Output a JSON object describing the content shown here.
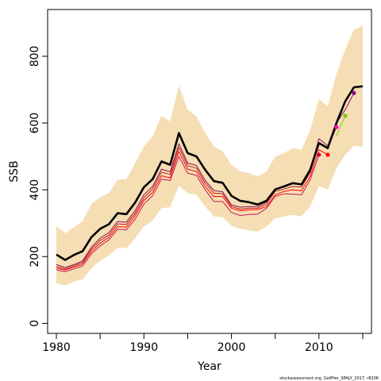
{
  "chart_data": {
    "type": "line",
    "xlabel": "Year",
    "ylabel": "SSB",
    "xlim": [
      1979,
      2016
    ],
    "ylim": [
      -30,
      940
    ],
    "x_ticks": [
      1980,
      1990,
      2000,
      2010
    ],
    "y_ticks": [
      0,
      200,
      400,
      600,
      800
    ],
    "band_color": "#F5DEB3",
    "band": {
      "x": [
        1980,
        1981,
        1982,
        1983,
        1984,
        1985,
        1986,
        1987,
        1988,
        1989,
        1990,
        1991,
        1992,
        1993,
        1994,
        1995,
        1996,
        1997,
        1998,
        1999,
        2000,
        2001,
        2002,
        2003,
        2004,
        2005,
        2006,
        2007,
        2008,
        2009,
        2010,
        2011,
        2012,
        2013,
        2014,
        2015
      ],
      "lower": [
        120,
        113,
        125,
        132,
        165,
        188,
        203,
        227,
        225,
        255,
        290,
        308,
        345,
        348,
        412,
        390,
        385,
        350,
        320,
        318,
        292,
        283,
        278,
        275,
        290,
        315,
        320,
        325,
        320,
        350,
        412,
        400,
        465,
        505,
        532,
        528
      ],
      "upper": [
        292,
        270,
        288,
        305,
        358,
        378,
        390,
        430,
        432,
        480,
        530,
        560,
        622,
        605,
        712,
        640,
        620,
        570,
        530,
        515,
        475,
        455,
        450,
        440,
        455,
        500,
        510,
        525,
        520,
        580,
        672,
        650,
        748,
        820,
        880,
        892
      ]
    },
    "series": [
      {
        "color": "#000000",
        "stroke_width": 2.6,
        "x": [
          1980,
          1981,
          1982,
          1983,
          1984,
          1985,
          1986,
          1987,
          1988,
          1989,
          1990,
          1991,
          1992,
          1993,
          1994,
          1995,
          1996,
          1997,
          1998,
          1999,
          2000,
          2001,
          2002,
          2003,
          2004,
          2005,
          2006,
          2007,
          2008,
          2009,
          2010,
          2011,
          2012,
          2013,
          2014,
          2015
        ],
        "y": [
          206,
          190,
          205,
          216,
          258,
          283,
          297,
          330,
          327,
          362,
          408,
          432,
          485,
          475,
          570,
          510,
          500,
          460,
          426,
          421,
          382,
          367,
          363,
          356,
          367,
          401,
          410,
          420,
          416,
          460,
          540,
          525,
          600,
          665,
          707,
          710
        ]
      },
      {
        "color": "#FF0000",
        "stroke_width": 1,
        "x": [
          1980,
          1981,
          1982,
          1983,
          1984,
          1985,
          1986,
          1987,
          1988,
          1989,
          1990,
          1991,
          1992,
          1993,
          1994,
          1995,
          1996,
          1997,
          1998,
          1999,
          2000,
          2001,
          2002,
          2003,
          2004,
          2005,
          2006,
          2007,
          2008,
          2009,
          2010,
          2011
        ],
        "y": [
          165,
          160,
          168,
          178,
          215,
          240,
          258,
          290,
          288,
          322,
          368,
          392,
          442,
          436,
          515,
          462,
          455,
          410,
          380,
          380,
          345,
          337,
          340,
          341,
          350,
          385,
          395,
          400,
          397,
          440,
          520,
          505
        ]
      },
      {
        "color": "#C2185B",
        "stroke_width": 1,
        "x": [
          1980,
          1981,
          1982,
          1983,
          1984,
          1985,
          1986,
          1987,
          1988,
          1989,
          1990,
          1991,
          1992,
          1993,
          1994,
          1995,
          1996,
          1997,
          1998,
          1999,
          2000,
          2001,
          2002,
          2003,
          2004,
          2005,
          2006,
          2007,
          2008,
          2009,
          2010
        ],
        "y": [
          160,
          155,
          163,
          172,
          208,
          232,
          250,
          282,
          280,
          312,
          357,
          382,
          432,
          428,
          500,
          450,
          443,
          400,
          365,
          365,
          332,
          323,
          326,
          327,
          345,
          380,
          388,
          387,
          385,
          430,
          505
        ]
      },
      {
        "color": "#B71C1C",
        "stroke_width": 1,
        "x": [
          1980,
          1981,
          1982,
          1983,
          1984,
          1985,
          1986,
          1987,
          1988,
          1989,
          1990,
          1991,
          1992,
          1993,
          1994,
          1995,
          1996,
          1997,
          1998,
          1999,
          2000,
          2001,
          2002,
          2003,
          2004,
          2005,
          2006,
          2007,
          2008,
          2009,
          2010,
          2011,
          2012
        ],
        "y": [
          170,
          163,
          172,
          183,
          222,
          248,
          265,
          298,
          296,
          330,
          376,
          402,
          453,
          446,
          527,
          472,
          465,
          420,
          390,
          388,
          350,
          342,
          345,
          345,
          358,
          395,
          402,
          410,
          408,
          452,
          540,
          525,
          588
        ]
      },
      {
        "color": "#8E0F5A",
        "stroke_width": 1,
        "x": [
          1980,
          1981,
          1982,
          1983,
          1984,
          1985,
          1986,
          1987,
          1988,
          1989,
          1990,
          1991,
          1992,
          1993,
          1994,
          1995,
          1996,
          1997,
          1998,
          1999,
          2000,
          2001,
          2002,
          2003,
          2004,
          2005,
          2006,
          2007,
          2008,
          2009,
          2010,
          2011,
          2012,
          2013,
          2014
        ],
        "y": [
          176,
          167,
          176,
          187,
          228,
          255,
          272,
          305,
          303,
          338,
          385,
          410,
          462,
          454,
          538,
          480,
          473,
          428,
          398,
          394,
          355,
          348,
          350,
          350,
          363,
          401,
          408,
          418,
          418,
          462,
          553,
          532,
          600,
          640,
          690
        ]
      },
      {
        "color": "#7CCD00",
        "stroke_width": 1,
        "x": [
          2012,
          2013
        ],
        "y": [
          562,
          622
        ]
      }
    ],
    "terminal_points": [
      {
        "x": 2010,
        "y": 505,
        "color": "#CC0033"
      },
      {
        "x": 2011,
        "y": 505,
        "color": "#FF0000"
      },
      {
        "x": 2012,
        "y": 588,
        "color": "#FF00CC"
      },
      {
        "x": 2013,
        "y": 622,
        "color": "#7CCD00"
      },
      {
        "x": 2014,
        "y": 690,
        "color": "#8B008B"
      }
    ],
    "footnote": "stockassessment.org, GolfHer_SPALY_2017, r8206"
  }
}
